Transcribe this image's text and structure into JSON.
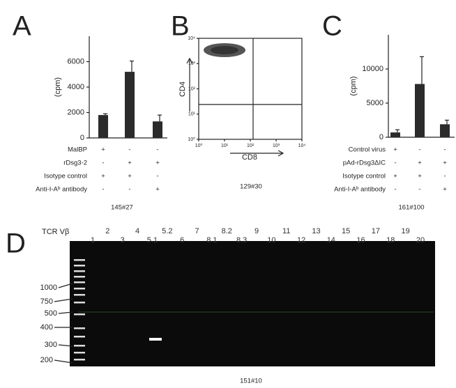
{
  "chart_data": [
    {
      "type": "bar",
      "panel": "A",
      "ylabel": "(cpm)",
      "ylim": [
        0,
        8000
      ],
      "yticks": [
        0,
        2000,
        4000,
        6000
      ],
      "values": [
        1800,
        5200,
        1300
      ],
      "errors": [
        100,
        850,
        500
      ],
      "color": "#2b2b2b",
      "treatments": [
        {
          "label": "MalBP",
          "signs": [
            "+",
            "-",
            "-"
          ]
        },
        {
          "label": "rDsg3-2",
          "signs": [
            "-",
            "+",
            "+"
          ]
        },
        {
          "label": "Isotype control",
          "signs": [
            "+",
            "+",
            "-"
          ]
        },
        {
          "label": "Anti-I-Aᵇ antibody",
          "signs": [
            "-",
            "-",
            "+"
          ]
        }
      ],
      "caption": "145#27"
    },
    {
      "type": "scatter",
      "panel": "B",
      "xlabel": "CD8",
      "ylabel": "CD4",
      "log": true,
      "xlim": [
        1,
        10000
      ],
      "ylim": [
        1,
        10000
      ],
      "xticks": [
        {
          "value": 1,
          "label": "10⁰"
        },
        {
          "value": 10,
          "label": "10¹"
        },
        {
          "value": 100,
          "label": "10²"
        },
        {
          "value": 1000,
          "label": "10³"
        },
        {
          "value": 10000,
          "label": "10⁴"
        }
      ],
      "yticks": [
        {
          "value": 1,
          "label": "10⁰"
        },
        {
          "value": 10,
          "label": "10¹"
        },
        {
          "value": 100,
          "label": "10²"
        },
        {
          "value": 1000,
          "label": "10³"
        },
        {
          "value": 10000,
          "label": "10⁴"
        }
      ],
      "caption": "129#30"
    },
    {
      "type": "bar",
      "panel": "C",
      "ylabel": "(cpm)",
      "ylim": [
        0,
        15000
      ],
      "yticks": [
        0,
        5000,
        10000
      ],
      "values": [
        700,
        7800,
        1900
      ],
      "errors": [
        400,
        4000,
        600
      ],
      "color": "#2b2b2b",
      "treatments": [
        {
          "label": "Control virus",
          "signs": [
            "+",
            "-",
            "-"
          ]
        },
        {
          "label": "pAd-rDsg3ΔIC",
          "signs": [
            "-",
            "+",
            "+"
          ]
        },
        {
          "label": "Isotype control",
          "signs": [
            "+",
            "+",
            "-"
          ]
        },
        {
          "label": "Anti-I-Aᵇ antibody",
          "signs": [
            "-",
            "-",
            "+"
          ]
        }
      ],
      "caption": "161#100"
    }
  ],
  "gel": {
    "panel": "D",
    "title": "TCR Vβ",
    "lanes": [
      "1",
      "2",
      "3",
      "4",
      "5.1",
      "5.2",
      "6",
      "7",
      "8.1",
      "8.2",
      "8.3",
      "9",
      "10",
      "11",
      "12",
      "13",
      "14",
      "15",
      "16",
      "17",
      "18",
      "19",
      "20"
    ],
    "ladder": [
      "1000",
      "750",
      "500",
      "400",
      "300",
      "200"
    ],
    "caption": "151#10"
  }
}
